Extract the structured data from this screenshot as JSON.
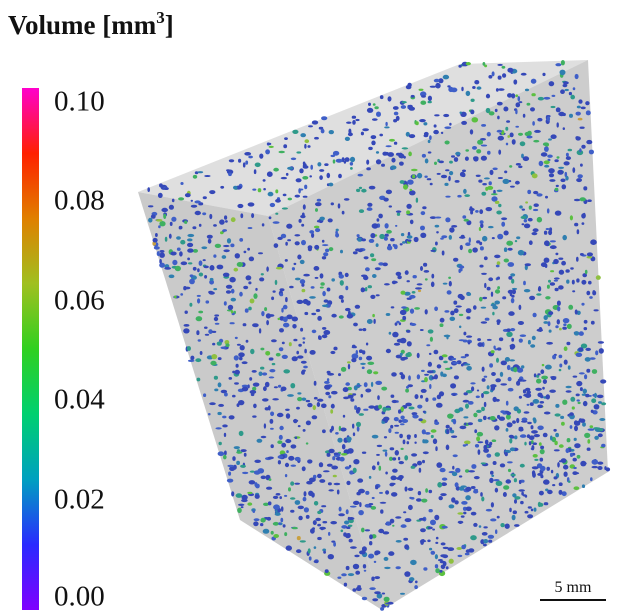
{
  "title": {
    "text": "Volume [mm",
    "exponent": "3",
    "suffix": "]"
  },
  "colorbar": {
    "ticks": [
      "0.10",
      "0.08",
      "0.06",
      "0.04",
      "0.02",
      "0.00"
    ],
    "colors": [
      "#7f00ff",
      "#2a2aff",
      "#00a0c0",
      "#00d070",
      "#30d020",
      "#a0c020",
      "#e08000",
      "#ff2000",
      "#ff00cc"
    ],
    "min": 0.0,
    "max": 0.1
  },
  "scale_bar": {
    "label": "5 mm"
  },
  "scene": {
    "box_color": "#b8b8b8",
    "particle_palette": [
      "#3548b8",
      "#3f5fc8",
      "#2f7fb0",
      "#2e9a8a",
      "#3fb060",
      "#5cc040",
      "#8fc040",
      "#c8a040"
    ]
  }
}
